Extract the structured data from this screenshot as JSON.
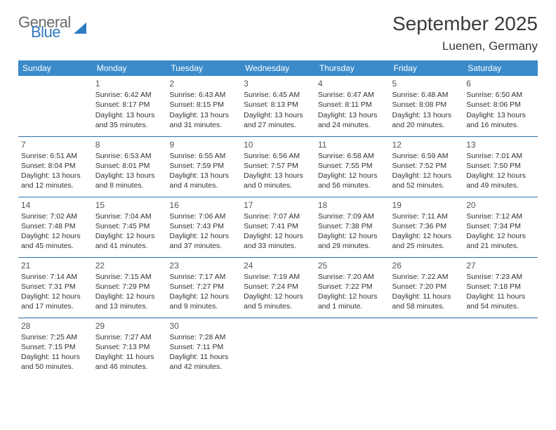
{
  "logo": {
    "word1": "General",
    "word2": "Blue"
  },
  "title": "September 2025",
  "location": "Luenen, Germany",
  "day_headers": [
    "Sunday",
    "Monday",
    "Tuesday",
    "Wednesday",
    "Thursday",
    "Friday",
    "Saturday"
  ],
  "colors": {
    "header_bg": "#3b8bca",
    "header_text": "#ffffff",
    "rule": "#2f6fa8",
    "logo_gray": "#6a6a6a",
    "logo_blue": "#2f7bbf"
  },
  "weeks": [
    [
      null,
      {
        "n": "1",
        "sr": "Sunrise: 6:42 AM",
        "ss": "Sunset: 8:17 PM",
        "dl": "Daylight: 13 hours and 35 minutes."
      },
      {
        "n": "2",
        "sr": "Sunrise: 6:43 AM",
        "ss": "Sunset: 8:15 PM",
        "dl": "Daylight: 13 hours and 31 minutes."
      },
      {
        "n": "3",
        "sr": "Sunrise: 6:45 AM",
        "ss": "Sunset: 8:13 PM",
        "dl": "Daylight: 13 hours and 27 minutes."
      },
      {
        "n": "4",
        "sr": "Sunrise: 6:47 AM",
        "ss": "Sunset: 8:11 PM",
        "dl": "Daylight: 13 hours and 24 minutes."
      },
      {
        "n": "5",
        "sr": "Sunrise: 6:48 AM",
        "ss": "Sunset: 8:08 PM",
        "dl": "Daylight: 13 hours and 20 minutes."
      },
      {
        "n": "6",
        "sr": "Sunrise: 6:50 AM",
        "ss": "Sunset: 8:06 PM",
        "dl": "Daylight: 13 hours and 16 minutes."
      }
    ],
    [
      {
        "n": "7",
        "sr": "Sunrise: 6:51 AM",
        "ss": "Sunset: 8:04 PM",
        "dl": "Daylight: 13 hours and 12 minutes."
      },
      {
        "n": "8",
        "sr": "Sunrise: 6:53 AM",
        "ss": "Sunset: 8:01 PM",
        "dl": "Daylight: 13 hours and 8 minutes."
      },
      {
        "n": "9",
        "sr": "Sunrise: 6:55 AM",
        "ss": "Sunset: 7:59 PM",
        "dl": "Daylight: 13 hours and 4 minutes."
      },
      {
        "n": "10",
        "sr": "Sunrise: 6:56 AM",
        "ss": "Sunset: 7:57 PM",
        "dl": "Daylight: 13 hours and 0 minutes."
      },
      {
        "n": "11",
        "sr": "Sunrise: 6:58 AM",
        "ss": "Sunset: 7:55 PM",
        "dl": "Daylight: 12 hours and 56 minutes."
      },
      {
        "n": "12",
        "sr": "Sunrise: 6:59 AM",
        "ss": "Sunset: 7:52 PM",
        "dl": "Daylight: 12 hours and 52 minutes."
      },
      {
        "n": "13",
        "sr": "Sunrise: 7:01 AM",
        "ss": "Sunset: 7:50 PM",
        "dl": "Daylight: 12 hours and 49 minutes."
      }
    ],
    [
      {
        "n": "14",
        "sr": "Sunrise: 7:02 AM",
        "ss": "Sunset: 7:48 PM",
        "dl": "Daylight: 12 hours and 45 minutes."
      },
      {
        "n": "15",
        "sr": "Sunrise: 7:04 AM",
        "ss": "Sunset: 7:45 PM",
        "dl": "Daylight: 12 hours and 41 minutes."
      },
      {
        "n": "16",
        "sr": "Sunrise: 7:06 AM",
        "ss": "Sunset: 7:43 PM",
        "dl": "Daylight: 12 hours and 37 minutes."
      },
      {
        "n": "17",
        "sr": "Sunrise: 7:07 AM",
        "ss": "Sunset: 7:41 PM",
        "dl": "Daylight: 12 hours and 33 minutes."
      },
      {
        "n": "18",
        "sr": "Sunrise: 7:09 AM",
        "ss": "Sunset: 7:38 PM",
        "dl": "Daylight: 12 hours and 29 minutes."
      },
      {
        "n": "19",
        "sr": "Sunrise: 7:11 AM",
        "ss": "Sunset: 7:36 PM",
        "dl": "Daylight: 12 hours and 25 minutes."
      },
      {
        "n": "20",
        "sr": "Sunrise: 7:12 AM",
        "ss": "Sunset: 7:34 PM",
        "dl": "Daylight: 12 hours and 21 minutes."
      }
    ],
    [
      {
        "n": "21",
        "sr": "Sunrise: 7:14 AM",
        "ss": "Sunset: 7:31 PM",
        "dl": "Daylight: 12 hours and 17 minutes."
      },
      {
        "n": "22",
        "sr": "Sunrise: 7:15 AM",
        "ss": "Sunset: 7:29 PM",
        "dl": "Daylight: 12 hours and 13 minutes."
      },
      {
        "n": "23",
        "sr": "Sunrise: 7:17 AM",
        "ss": "Sunset: 7:27 PM",
        "dl": "Daylight: 12 hours and 9 minutes."
      },
      {
        "n": "24",
        "sr": "Sunrise: 7:19 AM",
        "ss": "Sunset: 7:24 PM",
        "dl": "Daylight: 12 hours and 5 minutes."
      },
      {
        "n": "25",
        "sr": "Sunrise: 7:20 AM",
        "ss": "Sunset: 7:22 PM",
        "dl": "Daylight: 12 hours and 1 minute."
      },
      {
        "n": "26",
        "sr": "Sunrise: 7:22 AM",
        "ss": "Sunset: 7:20 PM",
        "dl": "Daylight: 11 hours and 58 minutes."
      },
      {
        "n": "27",
        "sr": "Sunrise: 7:23 AM",
        "ss": "Sunset: 7:18 PM",
        "dl": "Daylight: 11 hours and 54 minutes."
      }
    ],
    [
      {
        "n": "28",
        "sr": "Sunrise: 7:25 AM",
        "ss": "Sunset: 7:15 PM",
        "dl": "Daylight: 11 hours and 50 minutes."
      },
      {
        "n": "29",
        "sr": "Sunrise: 7:27 AM",
        "ss": "Sunset: 7:13 PM",
        "dl": "Daylight: 11 hours and 46 minutes."
      },
      {
        "n": "30",
        "sr": "Sunrise: 7:28 AM",
        "ss": "Sunset: 7:11 PM",
        "dl": "Daylight: 11 hours and 42 minutes."
      },
      null,
      null,
      null,
      null
    ]
  ]
}
